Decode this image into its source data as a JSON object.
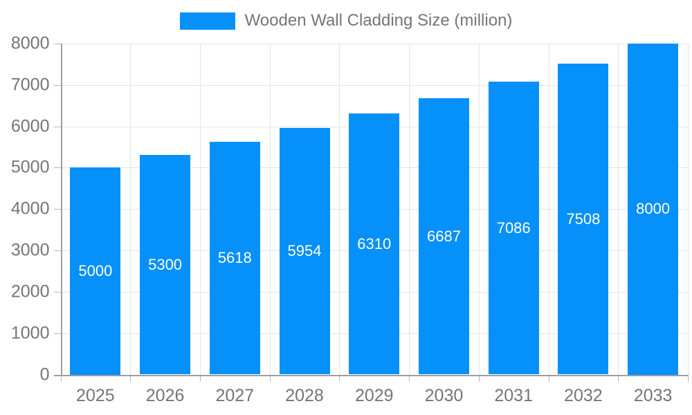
{
  "legend": {
    "label": "Wooden Wall Cladding Size (million)"
  },
  "colors": {
    "bar": "#0690FA",
    "axis_text": "#757575",
    "grid": "#e3e3e3",
    "axis_line": "#9e9e9e",
    "tick": "#b5b5b5",
    "value_label": "#ffffff"
  },
  "chart_data": {
    "type": "bar",
    "title": "Wooden Wall Cladding Size (million)",
    "categories": [
      "2025",
      "2026",
      "2027",
      "2028",
      "2029",
      "2030",
      "2031",
      "2032",
      "2033"
    ],
    "values": [
      5000,
      5300,
      5618,
      5954,
      6310,
      6687,
      7086,
      7508,
      8000
    ],
    "series": [
      {
        "name": "Wooden Wall Cladding Size (million)",
        "values": [
          5000,
          5300,
          5618,
          5954,
          6310,
          6687,
          7086,
          7508,
          8000
        ]
      }
    ],
    "xlabel": "",
    "ylabel": "",
    "ylim": [
      0,
      8000
    ],
    "ytick_step": 1000,
    "yticks": [
      0,
      1000,
      2000,
      3000,
      4000,
      5000,
      6000,
      7000,
      8000
    ],
    "grid": true,
    "legend_position": "top",
    "value_labels": "inside-center"
  }
}
